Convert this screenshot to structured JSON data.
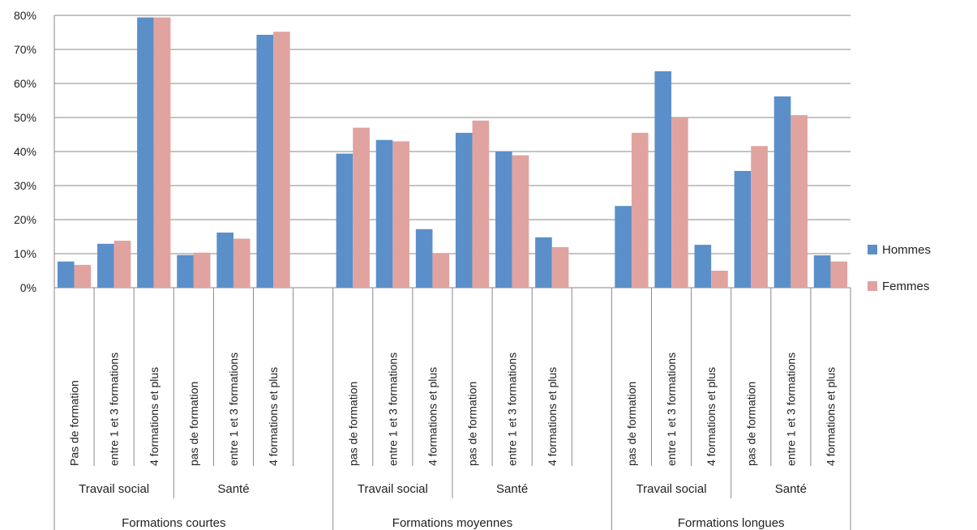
{
  "chart_data": {
    "type": "bar",
    "ylim": [
      0,
      80
    ],
    "y_ticks": [
      "0%",
      "10%",
      "20%",
      "30%",
      "40%",
      "50%",
      "60%",
      "70%",
      "80%"
    ],
    "grid": true,
    "legend_position": "right",
    "colors": {
      "Hommes": "#5b8fc9",
      "Femmes": "#e0a39f"
    },
    "categories": [
      "Pas de formation",
      "entre 1 et 3 formations",
      "4 formations et plus",
      "pas de formation",
      "entre 1 et 3 formations",
      "4 formations et plus",
      "pas de formation",
      "entre 1 et 3 formations",
      "4 formations et plus",
      "pas de formation",
      "entre 1 et 3 formations",
      "4 formations et plus",
      "pas de formation",
      "entre 1 et 3 formations",
      "4 formations et plus",
      "pas de formation",
      "entre 1 et 3 formations",
      "4 formations et plus"
    ],
    "sublevel_labels": [
      "Travail social",
      "Santé",
      "Travail social",
      "Santé",
      "Travail social",
      "Santé"
    ],
    "group_labels": [
      "Formations courtes",
      "Formations moyennes",
      "Formations longues"
    ],
    "series": [
      {
        "name": "Hommes",
        "values": [
          7.7,
          12.9,
          79.4,
          9.6,
          16.2,
          74.3,
          39.4,
          43.4,
          17.2,
          45.5,
          40.1,
          14.8,
          24.0,
          63.6,
          12.6,
          34.3,
          56.2,
          9.5
        ]
      },
      {
        "name": "Femmes",
        "values": [
          6.7,
          13.8,
          79.4,
          10.3,
          14.4,
          75.2,
          47.0,
          43.0,
          10.2,
          49.1,
          38.9,
          11.9,
          45.5,
          50.0,
          5.0,
          41.6,
          50.7,
          7.7
        ]
      }
    ]
  }
}
